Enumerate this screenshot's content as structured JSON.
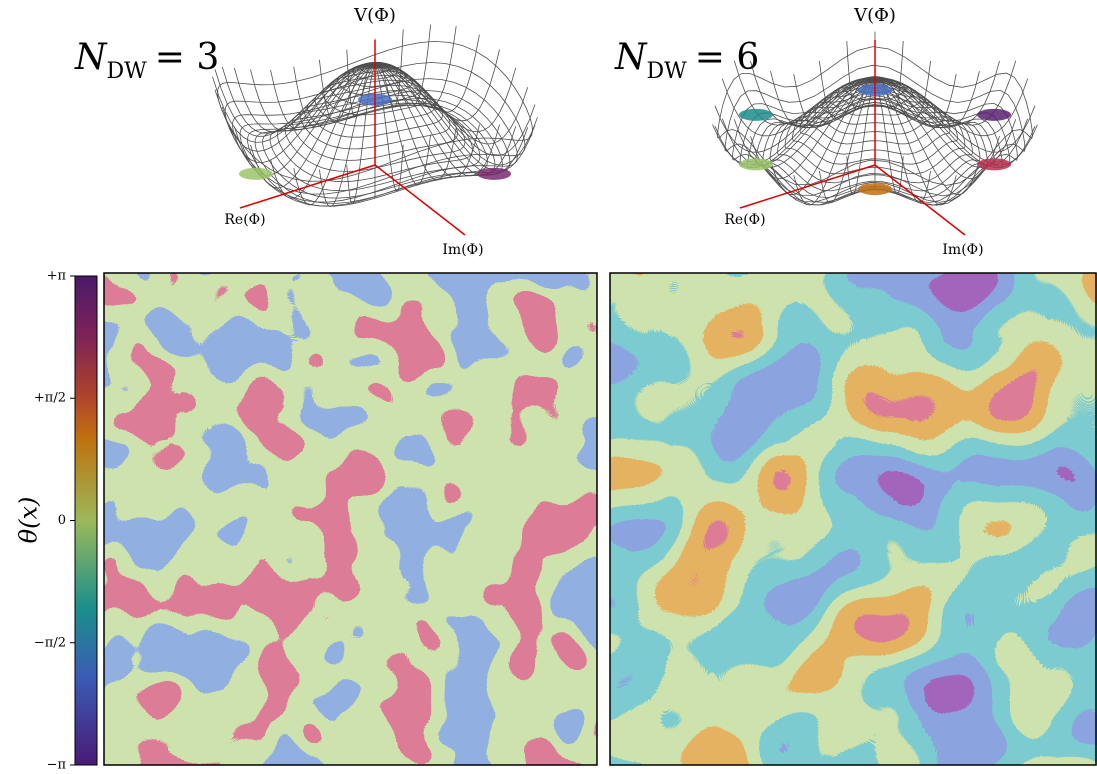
{
  "panels": [
    {
      "title": {
        "symbol": "N",
        "subscript": "DW",
        "relation": "= 3"
      },
      "potential": {
        "v_axis": "V(Φ)",
        "re_axis": "Re(Φ)",
        "im_axis": "Im(Φ)"
      }
    },
    {
      "title": {
        "symbol": "N",
        "subscript": "DW",
        "relation": "= 6"
      },
      "potential": {
        "v_axis": "V(Φ)",
        "re_axis": "Re(Φ)",
        "im_axis": "Im(Φ)"
      }
    }
  ],
  "colorbar": {
    "label": "θ(x)",
    "limits": [
      -3.14159,
      3.14159
    ],
    "ticks": [
      {
        "value": 3.14159,
        "label": "+π"
      },
      {
        "value": 1.5708,
        "label": "+π/2"
      },
      0,
      {
        "value": -1.5708,
        "label": "−π/2"
      },
      {
        "value": -3.14159,
        "label": "−π"
      }
    ]
  }
}
